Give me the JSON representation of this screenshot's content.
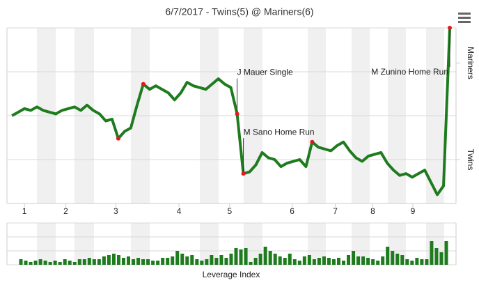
{
  "chart_data": [
    {
      "type": "line",
      "title": "6/7/2017 - Twins(5) @ Mariners(6)",
      "color": "#1e7b1e",
      "marker_color": "#e0191e",
      "x": [
        0,
        1,
        2,
        3,
        4,
        5,
        6,
        7,
        8,
        9,
        10,
        11,
        12,
        13,
        14,
        15,
        16,
        17,
        18,
        19,
        20,
        21,
        22,
        23,
        24,
        25,
        26,
        27,
        28,
        29,
        30,
        31,
        32,
        33,
        34,
        35,
        36,
        37,
        38,
        39,
        40,
        41,
        42,
        43,
        44,
        45,
        46,
        47,
        48,
        49,
        50,
        51,
        52,
        53,
        54,
        55,
        56,
        57,
        58,
        59,
        60,
        61,
        62,
        63,
        64,
        65,
        66,
        67,
        68,
        69,
        70
      ],
      "values": [
        50,
        52,
        54,
        53,
        55,
        53,
        52,
        51,
        53,
        54,
        55,
        53,
        56,
        53,
        51,
        47,
        48,
        37,
        41,
        43,
        56,
        68,
        65,
        67,
        65,
        63,
        59,
        63,
        69,
        67,
        66,
        65,
        68,
        71,
        68,
        66,
        51,
        17,
        18,
        22,
        29,
        26,
        25,
        21,
        23,
        24,
        25,
        21,
        35,
        32,
        31,
        30,
        33,
        35,
        30,
        26,
        24,
        27,
        28,
        29,
        23,
        19,
        16,
        17,
        15,
        17,
        19,
        12,
        5,
        10,
        100
      ],
      "highlights": [
        17,
        21,
        36,
        37,
        48,
        70
      ],
      "annotations": [
        {
          "point": 36,
          "text": "J Mauer Single"
        },
        {
          "point": 37,
          "text": "M Sano Home Run"
        },
        {
          "point": 70,
          "text": "M Zunino Home Run"
        }
      ],
      "xlim": [
        -0.8,
        71
      ],
      "xticks": [
        {
          "value": 2,
          "label": "1"
        },
        {
          "value": 8.6,
          "label": "2"
        },
        {
          "value": 16.6,
          "label": "3"
        },
        {
          "value": 26.7,
          "label": "4"
        },
        {
          "value": 34.8,
          "label": "5"
        },
        {
          "value": 44.8,
          "label": "6"
        },
        {
          "value": 51.7,
          "label": "7"
        },
        {
          "value": 57.7,
          "label": "8"
        },
        {
          "value": 64.1,
          "label": "9"
        }
      ],
      "ylim": [
        0,
        100
      ],
      "ygrid": [
        0,
        25,
        50,
        75,
        100
      ],
      "yticks": [
        {
          "value": 80,
          "label": "Mariners"
        },
        {
          "value": 25,
          "label": "Twins"
        }
      ]
    },
    {
      "type": "bar",
      "x_label": "Leverage Index",
      "color": "#1e7b1e",
      "values": [
        0.4,
        0.3,
        0.2,
        0.3,
        0.4,
        0.3,
        0.2,
        0.3,
        0.2,
        0.4,
        0.3,
        0.2,
        0.4,
        0.4,
        0.5,
        0.4,
        0.4,
        0.6,
        0.7,
        0.8,
        0.7,
        0.5,
        0.6,
        0.4,
        0.5,
        0.4,
        0.4,
        0.3,
        0.3,
        0.5,
        0.5,
        0.6,
        1.0,
        0.8,
        0.6,
        0.7,
        0.4,
        0.3,
        0.4,
        0.7,
        0.5,
        0.7,
        0.5,
        0.8,
        1.2,
        1.1,
        1.2,
        0.2,
        0.5,
        0.8,
        1.3,
        1.0,
        0.8,
        0.6,
        0.5,
        0.8,
        0.4,
        0.3,
        0.6,
        0.7,
        0.4,
        0.5,
        0.6,
        0.5,
        0.4,
        0.5,
        0.3,
        0.7,
        1.0,
        0.6,
        0.6,
        0.5,
        0.4,
        0.3,
        0.6,
        1.3,
        1.0,
        0.8,
        0.7,
        0.4,
        0.3,
        0.5,
        0.4,
        0.4,
        1.7,
        1.2,
        0.9,
        1.7
      ],
      "ylim": [
        0,
        3
      ],
      "ygrid": [
        0,
        1,
        2,
        3
      ]
    }
  ]
}
